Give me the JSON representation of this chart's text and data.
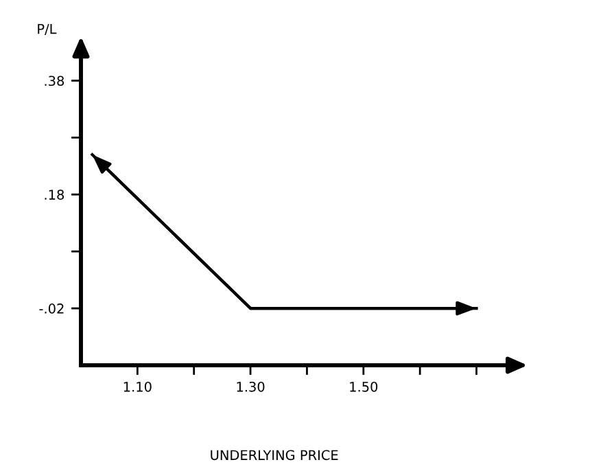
{
  "chart_data": {
    "type": "line",
    "xlabel": "UNDERLYING PRICE",
    "ylabel": "P/L",
    "x": [
      1.02,
      1.3,
      1.7
    ],
    "series": [
      {
        "color": "#000000",
        "values": [
          0.25,
          -0.02,
          -0.02
        ]
      }
    ],
    "xlim": [
      1.0,
      1.76
    ],
    "xticks": [
      {
        "value": 1.1,
        "label": "1.10"
      },
      {
        "value": 1.2,
        "label": null
      },
      {
        "value": 1.3,
        "label": "1.30"
      },
      {
        "value": 1.4,
        "label": null
      },
      {
        "value": 1.5,
        "label": "1.50"
      },
      {
        "value": 1.6,
        "label": null
      },
      {
        "value": 1.7,
        "label": null
      }
    ],
    "ylim": [
      -0.12,
      0.43
    ],
    "yticks": [
      {
        "value": -0.02,
        "label": "-.02"
      },
      {
        "value": 0.08,
        "label": null
      },
      {
        "value": 0.18,
        "label": ".18"
      },
      {
        "value": 0.28,
        "label": null
      },
      {
        "value": 0.38,
        "label": ".38"
      }
    ],
    "grid": false,
    "legend": false,
    "marker": "none",
    "line_style": "solid"
  }
}
